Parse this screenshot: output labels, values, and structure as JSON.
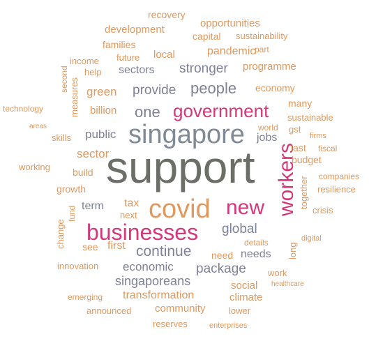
{
  "words": {
    "support": "support",
    "singapore": "singapore",
    "covid": "covid",
    "businesses": "businesses",
    "government": "government",
    "workers": "workers",
    "new": "new",
    "people": "people",
    "one": "one",
    "provide": "provide",
    "stronger": "stronger",
    "sectors": "sectors",
    "pandemic": "pandemic",
    "green": "green",
    "billion": "billion",
    "public": "public",
    "jobs": "jobs",
    "sector": "sector",
    "continue": "continue",
    "global": "global",
    "package": "package",
    "economic": "economic",
    "singaporeans": "singaporeans",
    "transformation": "transformation",
    "tax": "tax",
    "term": "term",
    "first": "first",
    "needs": "needs",
    "recovery": "recovery",
    "opportunities": "opportunities",
    "development": "development",
    "capital": "capital",
    "sustainability": "sustainability",
    "families": "families",
    "part": "part",
    "local": "local",
    "future": "future",
    "income": "income",
    "programme": "programme",
    "help": "help",
    "second": "second",
    "measures": "measures",
    "economy": "economy",
    "many": "many",
    "technology": "technology",
    "sustainable": "sustainable",
    "areas": "areas",
    "skills": "skills",
    "world": "world",
    "gst": "gst",
    "firms": "firms",
    "last": "last",
    "fiscal": "fiscal",
    "budget": "budget",
    "working": "working",
    "build": "build",
    "together": "together",
    "companies": "companies",
    "growth": "growth",
    "resilience": "resilience",
    "change": "change",
    "fund": "fund",
    "next": "next",
    "crisis": "crisis",
    "long": "long",
    "details": "details",
    "digital": "digital",
    "see": "see",
    "need": "need",
    "innovation": "innovation",
    "work": "work",
    "social": "social",
    "healthcare": "healthcare",
    "emerging": "emerging",
    "climate": "climate",
    "announced": "announced",
    "community": "community",
    "lower": "lower",
    "reserves": "reserves",
    "enterprises": "enterprises"
  },
  "colors": {
    "orange": "#e0995e",
    "gray": "#7f8198",
    "slate": "#808a95",
    "big": "#6c6f67",
    "pink": "#d2387b"
  }
}
